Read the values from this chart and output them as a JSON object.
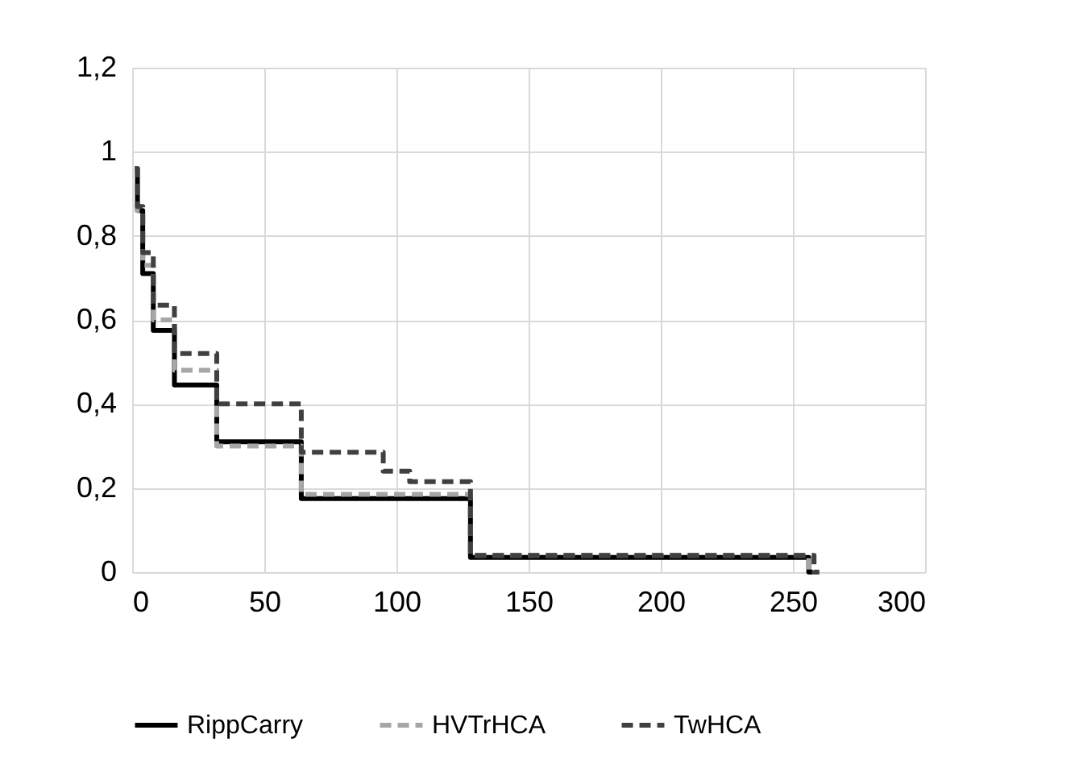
{
  "chart_data": {
    "type": "step",
    "xlim": [
      0,
      300
    ],
    "xticks": [
      0,
      50,
      100,
      150,
      200,
      250,
      300
    ],
    "ylim": [
      0,
      1.2
    ],
    "yticks": [
      {
        "value": 0,
        "label": "0"
      },
      {
        "value": 0.2,
        "label": "0,2"
      },
      {
        "value": 0.4,
        "label": "0,4"
      },
      {
        "value": 0.6,
        "label": "0,6"
      },
      {
        "value": 0.8,
        "label": "0,8"
      },
      {
        "value": 1,
        "label": "1"
      },
      {
        "value": 1.2,
        "label": "1,2"
      }
    ],
    "grid": true,
    "legend": "bottom",
    "marker": "none",
    "series": [
      {
        "name": "RippCarry",
        "color": "#000000",
        "line_style": "solid",
        "x": [
          1,
          2,
          4,
          8,
          16,
          32,
          64,
          128,
          256,
          258
        ],
        "values": [
          0.96,
          0.86,
          0.71,
          0.575,
          0.445,
          0.31,
          0.175,
          0.035,
          0,
          0
        ]
      },
      {
        "name": "HVTrHCA",
        "color": "#a6a6a6",
        "line_style": "dashed",
        "x": [
          1,
          2,
          4,
          8,
          16,
          32,
          64,
          128,
          256,
          258
        ],
        "values": [
          0.96,
          0.86,
          0.73,
          0.6,
          0.48,
          0.3,
          0.185,
          0.04,
          0,
          0
        ]
      },
      {
        "name": "TwHCA",
        "color": "#404040",
        "line_style": "dashed",
        "x": [
          1,
          2,
          4,
          8,
          16,
          32,
          64,
          95,
          105,
          128,
          258,
          260
        ],
        "values": [
          0.96,
          0.87,
          0.76,
          0.635,
          0.52,
          0.4,
          0.285,
          0.24,
          0.215,
          0.04,
          0,
          0
        ]
      }
    ]
  }
}
